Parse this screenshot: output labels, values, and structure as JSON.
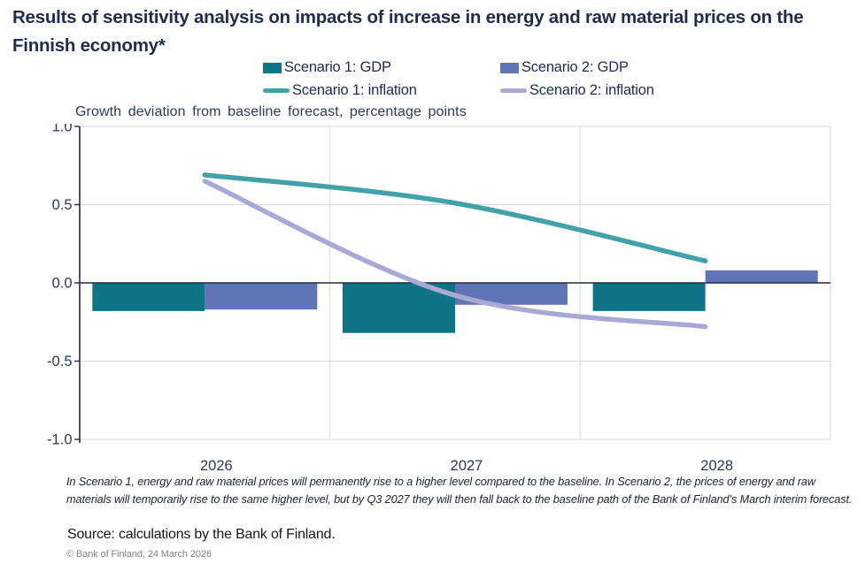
{
  "title": "Results of sensitivity analysis on impacts of increase in energy and raw material prices on the Finnish economy*",
  "subtitle": "Growth deviation from baseline forecast, percentage points",
  "footnote": "In Scenario 1, energy and raw material prices will permanently rise to a higher level compared to the baseline. In Scenario 2,  the prices of energy and raw materials will temporarily rise to the same higher level, but by Q3 2027 they will then fall back to the baseline path of the Bank of Finland’s March interim forecast.",
  "source": "Source: calculations by the Bank of Finland.",
  "copyright": "© Bank of Finland, 24 March 2026",
  "colors": {
    "title_text": "#1e2c52",
    "axis_text": "#243a5e",
    "axis_line": "#1e2a44",
    "gridline": "#d9d9d9",
    "scenario1_gdp": "#0e7486",
    "scenario2_gdp": "#5f75b5",
    "scenario1_inflation": "#42a2aa",
    "scenario2_inflation": "#a8a9d4",
    "footer_text": "#828286"
  },
  "chart_data": {
    "type": "combo-bar-line",
    "title": "Results of sensitivity analysis on impacts of increase in energy and raw material prices on the Finnish economy*",
    "subtitle": "Growth deviation from baseline forecast, percentage points",
    "categories": [
      "2026",
      "2027",
      "2028"
    ],
    "series": [
      {
        "name": "Scenario 1: GDP",
        "type": "bar",
        "color": "#0e7486",
        "values": [
          -0.18,
          -0.32,
          -0.18
        ]
      },
      {
        "name": "Scenario 2: GDP",
        "type": "bar",
        "color": "#5f75b5",
        "values": [
          -0.17,
          -0.14,
          0.08
        ]
      },
      {
        "name": "Scenario 1: inflation",
        "type": "line",
        "color": "#42a2aa",
        "values": [
          0.69,
          0.51,
          0.14
        ]
      },
      {
        "name": "Scenario 2: inflation",
        "type": "line",
        "color": "#a8a9d4",
        "values": [
          0.65,
          -0.08,
          -0.28
        ]
      }
    ],
    "ylim": [
      -1.0,
      1.0
    ],
    "yticks": [
      1.0,
      0.5,
      0.0,
      -0.5,
      -1.0
    ],
    "grid": true,
    "legend_position": "top"
  }
}
